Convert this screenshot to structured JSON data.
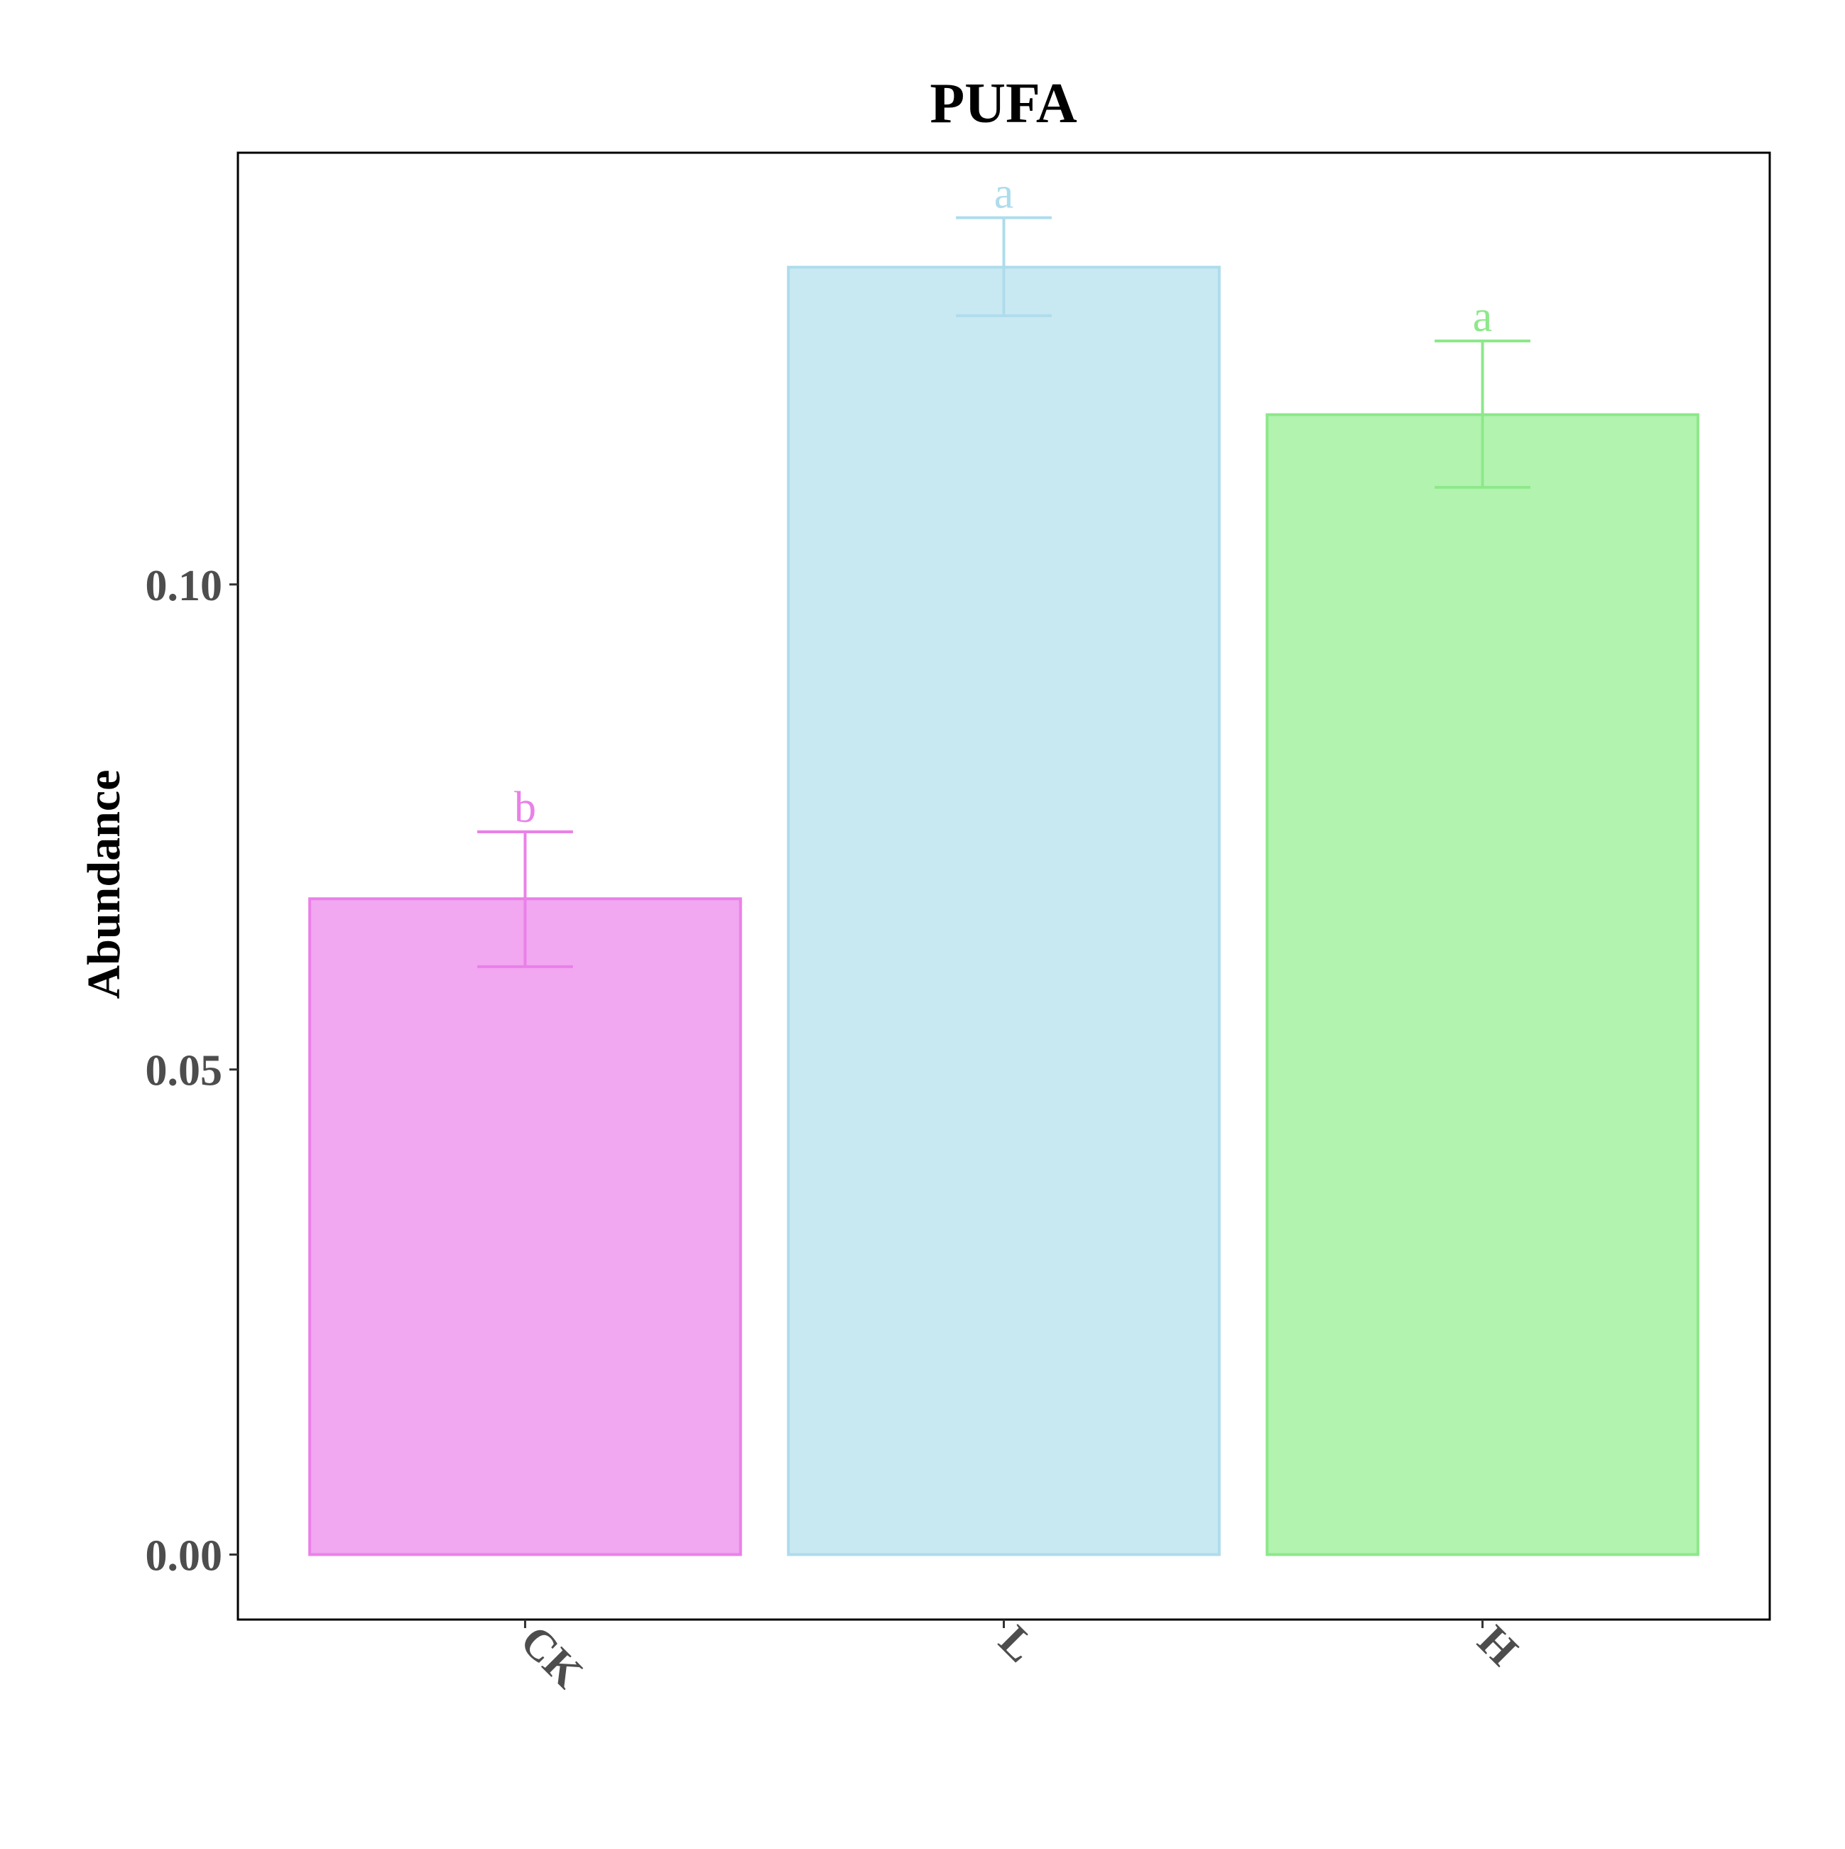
{
  "chart_data": {
    "type": "bar",
    "title": "PUFA",
    "xlabel": "",
    "ylabel": "Abundance",
    "categories": [
      "CK",
      "L",
      "H"
    ],
    "values": [
      0.0676,
      0.1327,
      0.1175
    ],
    "error_upper": [
      0.0745,
      0.1378,
      0.1251
    ],
    "error_lower": [
      0.0606,
      0.1277,
      0.11
    ],
    "significance_letters": [
      "b",
      "a",
      "a"
    ],
    "fill_colors": [
      "#f2a7f1",
      "#c9e9f2",
      "#b2f3b0"
    ],
    "stroke_colors": [
      "#ea80e8",
      "#aedcec",
      "#8de88a"
    ],
    "ylim": [
      -0.0067,
      0.1445
    ],
    "yticks": [
      0.0,
      0.05,
      0.1
    ],
    "ytick_labels": [
      "0.00",
      "0.05",
      "0.10"
    ],
    "grid": false,
    "legend": "none"
  }
}
